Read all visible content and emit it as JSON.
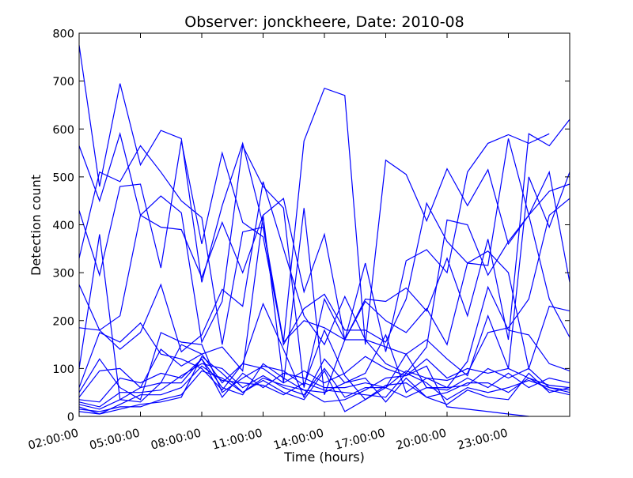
{
  "chart_data": {
    "type": "line",
    "title": "Observer: jonckheere, Date: 2010-08",
    "xlabel": "Time (hours)",
    "ylabel": "Detection count",
    "xlim": [
      2,
      26
    ],
    "ylim": [
      0,
      800
    ],
    "x_ticks": [
      2,
      5,
      8,
      11,
      14,
      17,
      20,
      23
    ],
    "x_tick_labels": [
      "02:00:00",
      "05:00:00",
      "08:00:00",
      "11:00:00",
      "14:00:00",
      "17:00:00",
      "20:00:00",
      "23:00:00"
    ],
    "y_ticks": [
      0,
      100,
      200,
      300,
      400,
      500,
      600,
      700,
      800
    ],
    "y_tick_labels": [
      "0",
      "100",
      "200",
      "300",
      "400",
      "500",
      "600",
      "700",
      "800"
    ],
    "grid": false,
    "legend": "none",
    "line_color": "#0000ff",
    "x": [
      2,
      3,
      4,
      5,
      6,
      7,
      8,
      9,
      10,
      11,
      12,
      13,
      14,
      15,
      16,
      17,
      18,
      19,
      20,
      21,
      22,
      23,
      24,
      25,
      26
    ],
    "series": [
      {
        "values": [
          775,
          480,
          695,
          525,
          597,
          580,
          280,
          440,
          570,
          400,
          155,
          575,
          685,
          670,
          150,
          535,
          505,
          408,
          517,
          440,
          515,
          360,
          420,
          245,
          165
        ]
      },
      {
        "values": [
          565,
          450,
          590,
          420,
          395,
          390,
          290,
          405,
          300,
          420,
          455,
          260,
          380,
          160,
          245,
          240,
          268,
          220,
          330,
          210,
          370,
          160,
          590,
          565,
          620
        ]
      },
      {
        "values": [
          430,
          295,
          480,
          485,
          310,
          575,
          360,
          550,
          405,
          375,
          155,
          200,
          185,
          160,
          320,
          135,
          325,
          348,
          300,
          510,
          570,
          588,
          570,
          590,
          null
        ]
      },
      {
        "values": [
          330,
          510,
          490,
          565,
          510,
          450,
          415,
          150,
          385,
          395,
          150,
          225,
          255,
          180,
          180,
          155,
          245,
          445,
          365,
          320,
          315,
          580,
          420,
          510,
          280
        ]
      },
      {
        "values": [
          275,
          180,
          210,
          420,
          460,
          425,
          155,
          240,
          565,
          480,
          435,
          60,
          245,
          160,
          160,
          110,
          90,
          145,
          410,
          400,
          295,
          365,
          420,
          470,
          485
        ]
      },
      {
        "values": [
          185,
          180,
          140,
          175,
          275,
          135,
          170,
          265,
          230,
          490,
          350,
          210,
          150,
          250,
          160,
          145,
          130,
          160,
          120,
          85,
          210,
          100,
          500,
          395,
          510
        ]
      },
      {
        "values": [
          100,
          380,
          35,
          60,
          140,
          105,
          130,
          145,
          95,
          420,
          70,
          435,
          45,
          160,
          240,
          200,
          175,
          225,
          150,
          320,
          345,
          300,
          100,
          230,
          220
        ]
      },
      {
        "values": [
          60,
          175,
          155,
          195,
          130,
          120,
          100,
          55,
          110,
          235,
          140,
          40,
          120,
          70,
          90,
          170,
          50,
          80,
          75,
          90,
          175,
          185,
          245,
          420,
          455
        ]
      },
      {
        "values": [
          50,
          120,
          60,
          35,
          175,
          155,
          150,
          50,
          80,
          105,
          95,
          65,
          180,
          85,
          35,
          60,
          130,
          60,
          60,
          115,
          270,
          180,
          170,
          110,
          95
        ]
      },
      {
        "values": [
          40,
          95,
          100,
          60,
          70,
          150,
          130,
          70,
          110,
          100,
          70,
          95,
          70,
          90,
          125,
          100,
          85,
          120,
          80,
          100,
          90,
          100,
          80,
          55,
          45
        ]
      },
      {
        "values": [
          35,
          30,
          80,
          70,
          90,
          80,
          120,
          40,
          90,
          60,
          90,
          80,
          60,
          60,
          70,
          60,
          95,
          80,
          60,
          65,
          100,
          80,
          100,
          60,
          55
        ]
      },
      {
        "values": [
          30,
          20,
          50,
          50,
          55,
          85,
          110,
          100,
          60,
          85,
          60,
          45,
          100,
          40,
          60,
          60,
          40,
          60,
          55,
          80,
          60,
          90,
          60,
          80,
          70
        ]
      },
      {
        "values": [
          25,
          15,
          35,
          30,
          70,
          70,
          120,
          60,
          45,
          110,
          80,
          55,
          50,
          70,
          80,
          30,
          80,
          40,
          50,
          70,
          70,
          50,
          80,
          65,
          60
        ]
      },
      {
        "values": [
          20,
          5,
          25,
          45,
          45,
          60,
          105,
          75,
          70,
          65,
          45,
          70,
          55,
          50,
          45,
          40,
          90,
          70,
          35,
          60,
          50,
          60,
          75,
          60,
          50
        ]
      },
      {
        "values": [
          15,
          10,
          20,
          20,
          35,
          45,
          95,
          80,
          50,
          75,
          50,
          35,
          95,
          10,
          35,
          65,
          70,
          40,
          25,
          55,
          40,
          35,
          90,
          50,
          60
        ]
      },
      {
        "values": [
          10,
          5,
          15,
          25,
          30,
          40,
          125,
          90,
          50,
          80,
          65,
          55,
          30,
          35,
          55,
          80,
          85,
          105,
          20,
          15,
          10,
          5,
          0,
          null,
          null
        ]
      }
    ]
  }
}
